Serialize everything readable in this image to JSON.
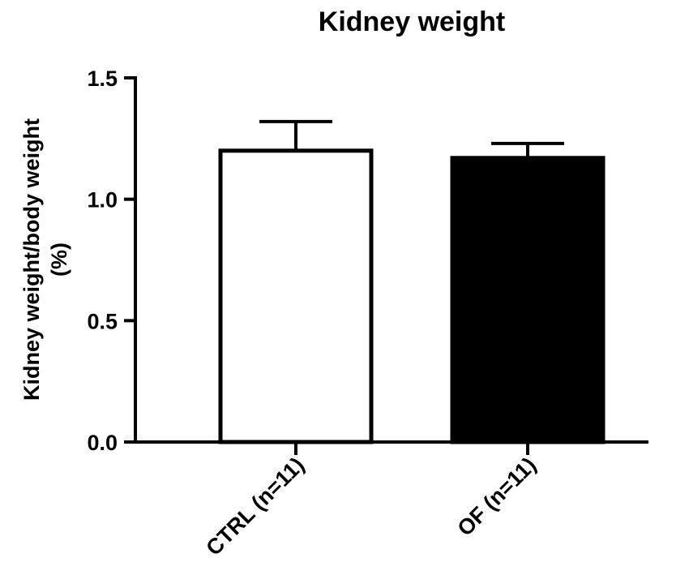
{
  "chart_data": {
    "type": "bar",
    "title": "Kidney weight",
    "ylabel_lines": [
      "Kidney weight/body weight",
      "(%)"
    ],
    "xlabel": "",
    "categories": [
      "CTRL (n=11)",
      "OF (n=11)"
    ],
    "values": [
      1.2,
      1.17
    ],
    "error_upper": [
      0.12,
      0.06
    ],
    "bar_fill": [
      "#ffffff",
      "#000000"
    ],
    "bar_stroke": "#000000",
    "ylim": [
      0,
      1.5
    ],
    "yticks": [
      "0.0",
      "0.5",
      "1.0",
      "1.5"
    ],
    "grid": false,
    "legend": "none"
  }
}
